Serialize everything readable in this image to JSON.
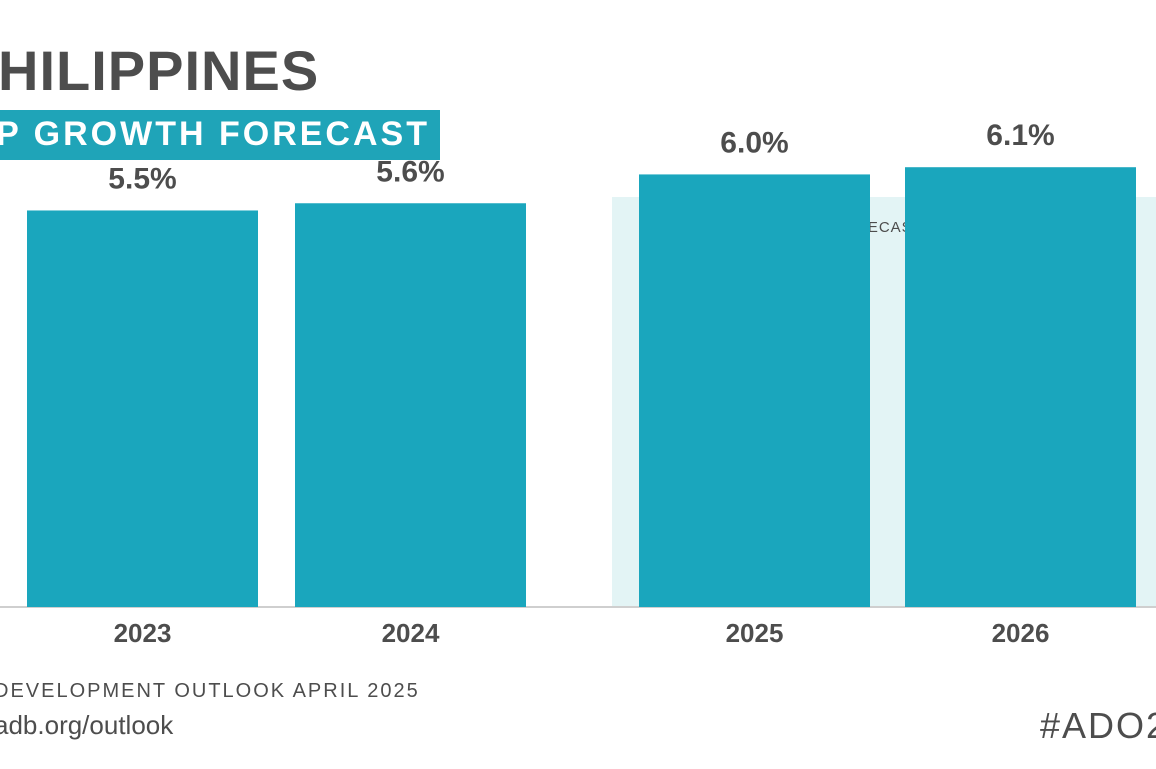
{
  "header": {
    "title": "HILIPPINES",
    "subtitle": "P GROWTH FORECAST"
  },
  "footer": {
    "source": "DEVELOPMENT OUTLOOK APRIL 2025",
    "url": "adb.org/outlook",
    "hashtag": "#ADO2"
  },
  "colors": {
    "bar": "#1aa6bd",
    "forecast_band": "#e3f4f5",
    "text": "#4d4d4d",
    "axis": "#cfcfcf"
  },
  "chart_data": {
    "type": "bar",
    "categories": [
      "2023",
      "2024",
      "2025",
      "2026"
    ],
    "values": [
      5.5,
      5.6,
      6.0,
      6.1
    ],
    "value_labels": [
      "5.5%",
      "5.6%",
      "6.0%",
      "6.1%"
    ],
    "unit": "%",
    "forecast_label": "FORECAST",
    "forecast_categories": [
      "2025",
      "2026"
    ],
    "ylim": [
      0,
      6.2
    ],
    "grid": false,
    "legend": "none"
  }
}
